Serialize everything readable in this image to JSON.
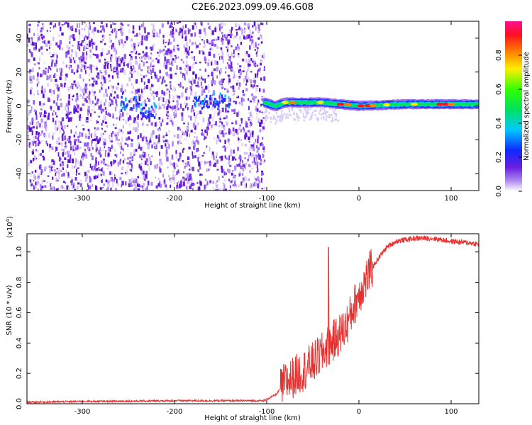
{
  "title": "C2E6.2023.099.09.46.G08",
  "colors": {
    "snr_line": "#e8312f",
    "spectrogram_noise": "#6a1ee0",
    "axis": "#000000"
  },
  "chart_data": [
    {
      "type": "heatmap",
      "xlabel": "Height of straight line (km)",
      "ylabel": "Frequency (Hz)",
      "xlim": [
        -360,
        130
      ],
      "ylim": [
        -50,
        50
      ],
      "xticks": [
        -300,
        -200,
        -100,
        0,
        100
      ],
      "yticks": [
        -40,
        -20,
        0,
        20,
        40
      ],
      "colorbar": {
        "label": "Normalized spectral amplitude",
        "range": [
          0,
          1
        ],
        "ticks": [
          "0.0",
          "0.2",
          "0.4",
          "0.6",
          "0.8"
        ],
        "colormap": "rainbow (white → violet → blue → cyan → green → yellow → red → magenta)"
      },
      "features": {
        "noise_region_x": [
          -360,
          -103
        ],
        "signal_ridge": [
          {
            "x": -103,
            "freq": 2
          },
          {
            "x": -90,
            "freq": 0
          },
          {
            "x": -80,
            "freq": 2
          },
          {
            "x": -60,
            "freq": 2
          },
          {
            "x": -40,
            "freq": 2
          },
          {
            "x": -20,
            "freq": 1
          },
          {
            "x": 0,
            "freq": 0
          },
          {
            "x": 50,
            "freq": 1
          },
          {
            "x": 90,
            "freq": 1
          },
          {
            "x": 130,
            "freq": 1
          }
        ]
      }
    },
    {
      "type": "line",
      "xlabel": "Height of straight line (km)",
      "ylabel": "SNR (10 * v/v)",
      "y_multiplier": "(x10^4)",
      "xlim": [
        -360,
        130
      ],
      "ylim": [
        0,
        1.12
      ],
      "xticks": [
        -300,
        -200,
        -100,
        0,
        100
      ],
      "yticks": [
        "0.0",
        "0.2",
        "0.4",
        "0.6",
        "0.8",
        "1.0"
      ],
      "series": [
        {
          "x": [
            -360,
            -300,
            -250,
            -200,
            -150,
            -103,
            -90,
            -80,
            -60,
            -50,
            -40,
            -35,
            -25,
            -15,
            -10,
            -5,
            0,
            10,
            20,
            30,
            40,
            60,
            80,
            100,
            120,
            130
          ],
          "values": [
            0.01,
            0.015,
            0.017,
            0.02,
            0.02,
            0.02,
            0.06,
            0.14,
            0.22,
            0.27,
            0.33,
            0.37,
            0.43,
            0.5,
            0.57,
            0.65,
            0.72,
            0.85,
            0.95,
            1.03,
            1.07,
            1.09,
            1.09,
            1.07,
            1.06,
            1.05
          ]
        }
      ]
    }
  ]
}
